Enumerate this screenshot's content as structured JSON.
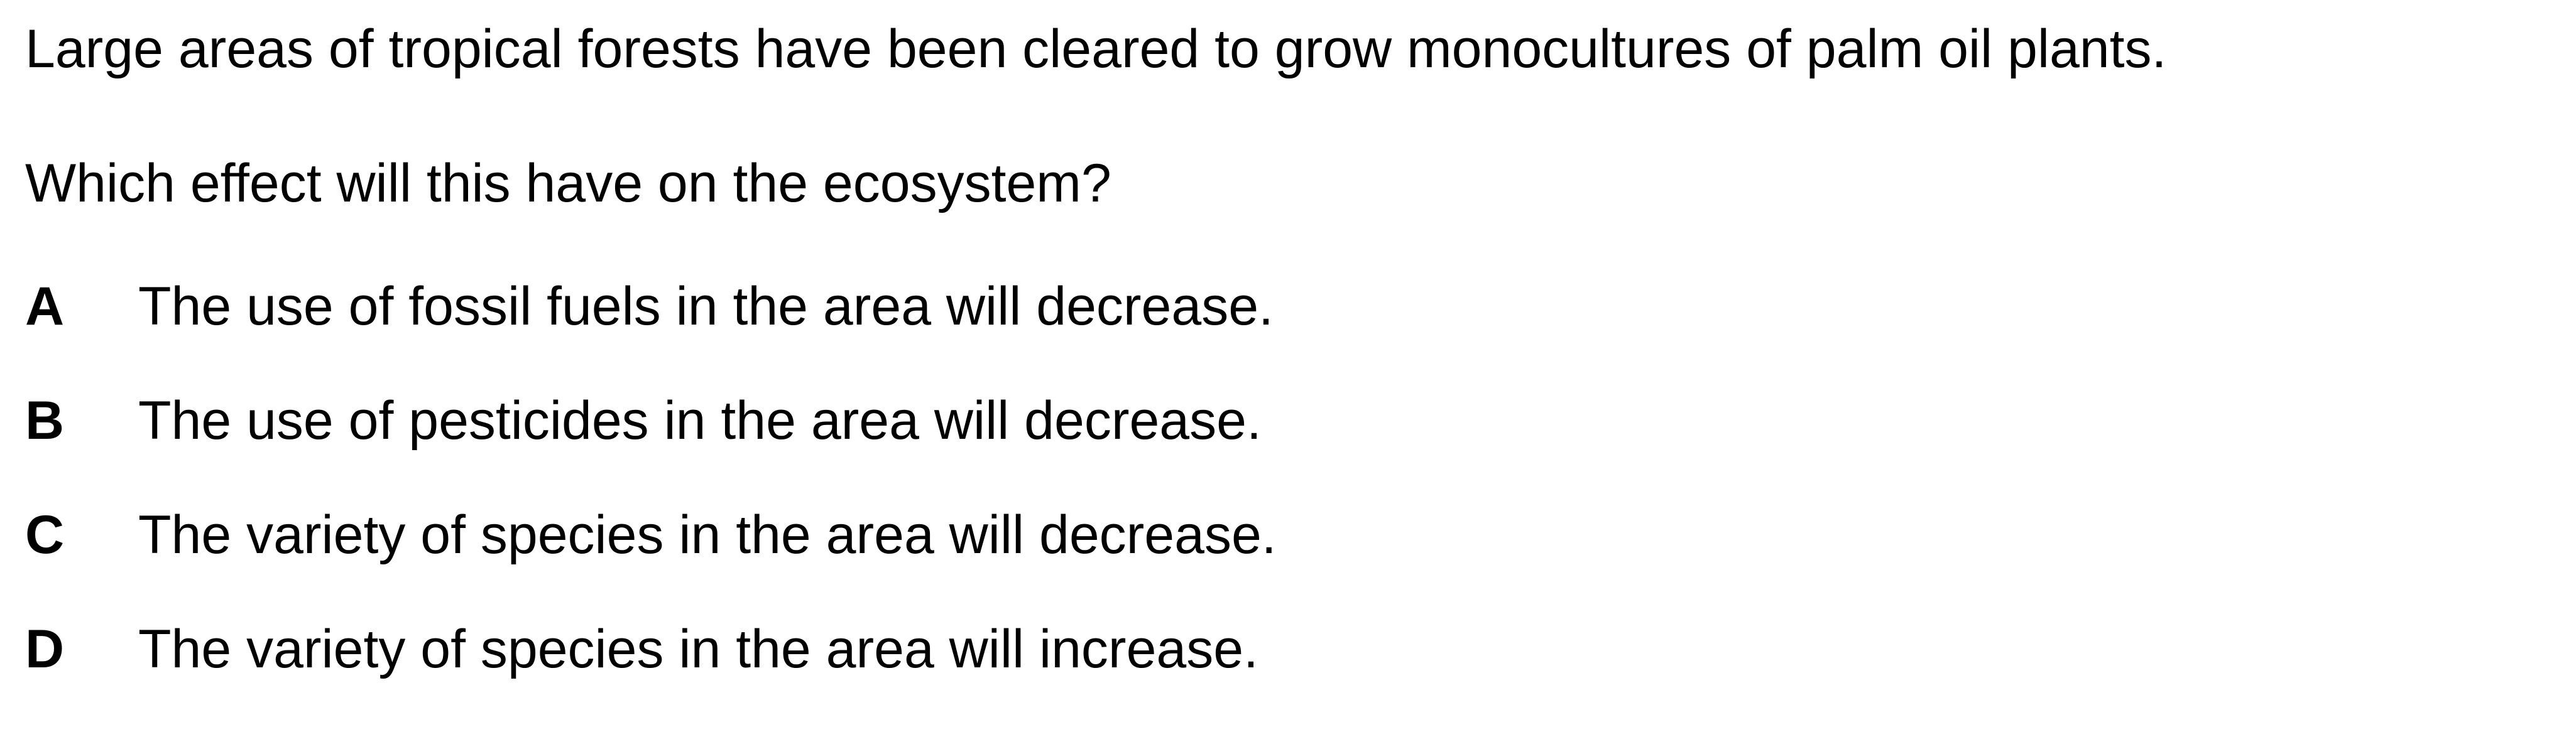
{
  "question": {
    "stem": "Large areas of tropical forests have been cleared to grow monocultures of palm oil plants.",
    "prompt": "Which effect will this have on the ecosystem?"
  },
  "options": [
    {
      "letter": "A",
      "text": "The use of fossil fuels in the area will decrease."
    },
    {
      "letter": "B",
      "text": "The use of pesticides in the area will decrease."
    },
    {
      "letter": "C",
      "text": "The variety of species in the area will decrease."
    },
    {
      "letter": "D",
      "text": "The variety of species in the area will increase."
    }
  ]
}
